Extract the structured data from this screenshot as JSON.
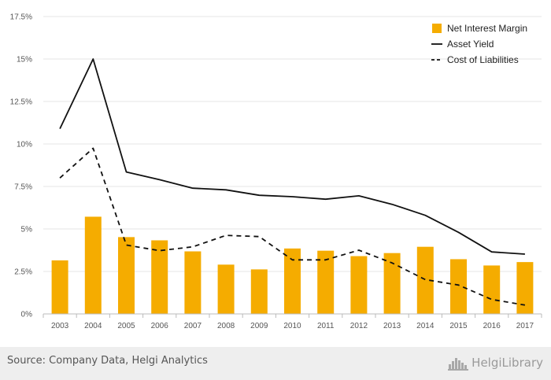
{
  "chart_data": {
    "type": "bar",
    "categories": [
      "2003",
      "2004",
      "2005",
      "2006",
      "2007",
      "2008",
      "2009",
      "2010",
      "2011",
      "2012",
      "2013",
      "2014",
      "2015",
      "2016",
      "2017"
    ],
    "series": [
      {
        "name": "Net Interest Margin",
        "kind": "bar",
        "color": "#f5ac00",
        "values": [
          3.15,
          5.72,
          4.52,
          4.33,
          3.68,
          2.9,
          2.62,
          3.85,
          3.72,
          3.4,
          3.58,
          3.95,
          3.22,
          2.85,
          3.05
        ]
      },
      {
        "name": "Asset Yield",
        "kind": "line",
        "style": "solid",
        "color": "#111111",
        "values": [
          10.9,
          15.0,
          8.35,
          7.9,
          7.4,
          7.3,
          6.98,
          6.9,
          6.75,
          6.95,
          6.45,
          5.8,
          4.8,
          3.65,
          3.52
        ]
      },
      {
        "name": "Cost of Liabilities",
        "kind": "line",
        "style": "dashed",
        "color": "#111111",
        "values": [
          8.0,
          9.75,
          4.05,
          3.72,
          3.95,
          4.62,
          4.55,
          3.18,
          3.18,
          3.75,
          3.0,
          2.02,
          1.7,
          0.85,
          0.52
        ]
      }
    ],
    "ylim": [
      0,
      17.5
    ],
    "yticks": [
      0,
      2.5,
      5,
      7.5,
      10,
      12.5,
      15,
      17.5
    ],
    "ytick_labels": [
      "0%",
      "2.5%",
      "5%",
      "7.5%",
      "10%",
      "12.5%",
      "15%",
      "17.5%"
    ],
    "title": "",
    "xlabel": "",
    "ylabel": "",
    "grid": true,
    "legend_position": "top-right"
  },
  "footer": {
    "source": "Source: Company Data, Helgi Analytics",
    "brand": "HelgiLibrary",
    "brand_icon": "helgi-logo-icon"
  }
}
